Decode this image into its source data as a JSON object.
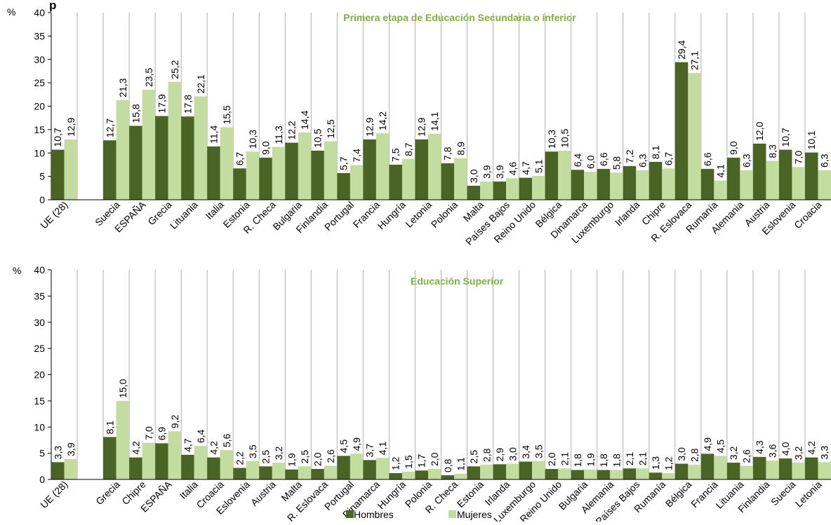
{
  "colors": {
    "hombres": "#4a6425",
    "mujeres": "#c3dca0",
    "title": "#7fb03a",
    "grid": "#b0b0b0",
    "axis": "#000000"
  },
  "header_fragment": "p",
  "legend": {
    "hombres": "Hombres",
    "mujeres": "Mujeres"
  },
  "chart_data": [
    {
      "type": "bar",
      "title": "Primera etapa de Educación Secundaria o inferior",
      "ylabel": "%",
      "ylim": [
        0,
        40
      ],
      "yticks": [
        0,
        5,
        10,
        15,
        20,
        25,
        30,
        35,
        40
      ],
      "grid": "vertical separators",
      "categories": [
        "UE (28)",
        "",
        "Suecia",
        "ESPAÑA",
        "Grecia",
        "Lituania",
        "Italia",
        "Estonia",
        "R. Checa",
        "Bulgaria",
        "Finlandia",
        "Portugal",
        "Francia",
        "Hungría",
        "Letonia",
        "Polonia",
        "Malta",
        "Países Bajos",
        "Reino Unido",
        "Bélgica",
        "Dinamarca",
        "Luxemburgo",
        "Irlanda",
        "Chipre",
        "R. Eslovaca",
        "Rumanía",
        "Alemania",
        "Austria",
        "Eslovenia",
        "Croacia"
      ],
      "series": [
        {
          "name": "Hombres",
          "values": [
            10.7,
            null,
            12.7,
            15.8,
            17.9,
            17.8,
            11.4,
            6.7,
            9.0,
            12.2,
            10.5,
            5.7,
            12.9,
            7.5,
            12.9,
            7.8,
            3.0,
            3.9,
            4.7,
            10.3,
            6.4,
            6.6,
            7.2,
            8.1,
            29.4,
            6.6,
            9.0,
            12.0,
            10.7,
            10.1
          ]
        },
        {
          "name": "Mujeres",
          "values": [
            12.9,
            null,
            21.3,
            23.5,
            25.2,
            22.1,
            15.5,
            10.3,
            11.3,
            14.4,
            12.5,
            7.4,
            14.2,
            8.7,
            14.1,
            8.9,
            3.9,
            4.6,
            5.1,
            10.5,
            6.0,
            5.8,
            6.3,
            6.7,
            27.1,
            4.1,
            6.3,
            8.3,
            7.0,
            6.3
          ]
        }
      ]
    },
    {
      "type": "bar",
      "title": "Educación Superior",
      "ylabel": "%",
      "ylim": [
        0,
        40
      ],
      "yticks": [
        0,
        5,
        10,
        15,
        20,
        25,
        30,
        35,
        40
      ],
      "grid": "vertical separators",
      "categories": [
        "UE (28)",
        "",
        "Grecia",
        "Chipre",
        "ESPAÑA",
        "Italia",
        "Croacia",
        "Eslovenia",
        "Austria",
        "Malta",
        "R. Eslovaca",
        "Portugal",
        "Dinamarca",
        "Hungría",
        "Polonia",
        "R. Checa",
        "Estonia",
        "Irlanda",
        "Luxemburgo",
        "Reino Unido",
        "Bulgaria",
        "Alemania",
        "Países Bajos",
        "Rumanía",
        "Bélgica",
        "Francia",
        "Lituania",
        "Finlandia",
        "Suecia",
        "Letonia"
      ],
      "series": [
        {
          "name": "Hombres",
          "values": [
            3.3,
            null,
            8.1,
            4.2,
            6.9,
            4.7,
            4.2,
            2.2,
            2.5,
            1.9,
            2.0,
            4.5,
            3.7,
            1.2,
            1.7,
            0.8,
            2.5,
            2.9,
            3.4,
            2.0,
            1.8,
            1.8,
            2.1,
            1.3,
            3.0,
            4.9,
            3.2,
            4.3,
            4.0,
            4.2
          ]
        },
        {
          "name": "Mujeres",
          "values": [
            3.9,
            null,
            15.0,
            7.0,
            9.2,
            6.4,
            5.6,
            3.5,
            3.2,
            2.5,
            2.6,
            4.9,
            4.1,
            1.5,
            2.0,
            1.1,
            2.8,
            3.0,
            3.5,
            2.1,
            1.9,
            1.8,
            2.1,
            1.2,
            2.8,
            4.5,
            2.6,
            3.6,
            3.2,
            3.3
          ]
        }
      ]
    }
  ]
}
